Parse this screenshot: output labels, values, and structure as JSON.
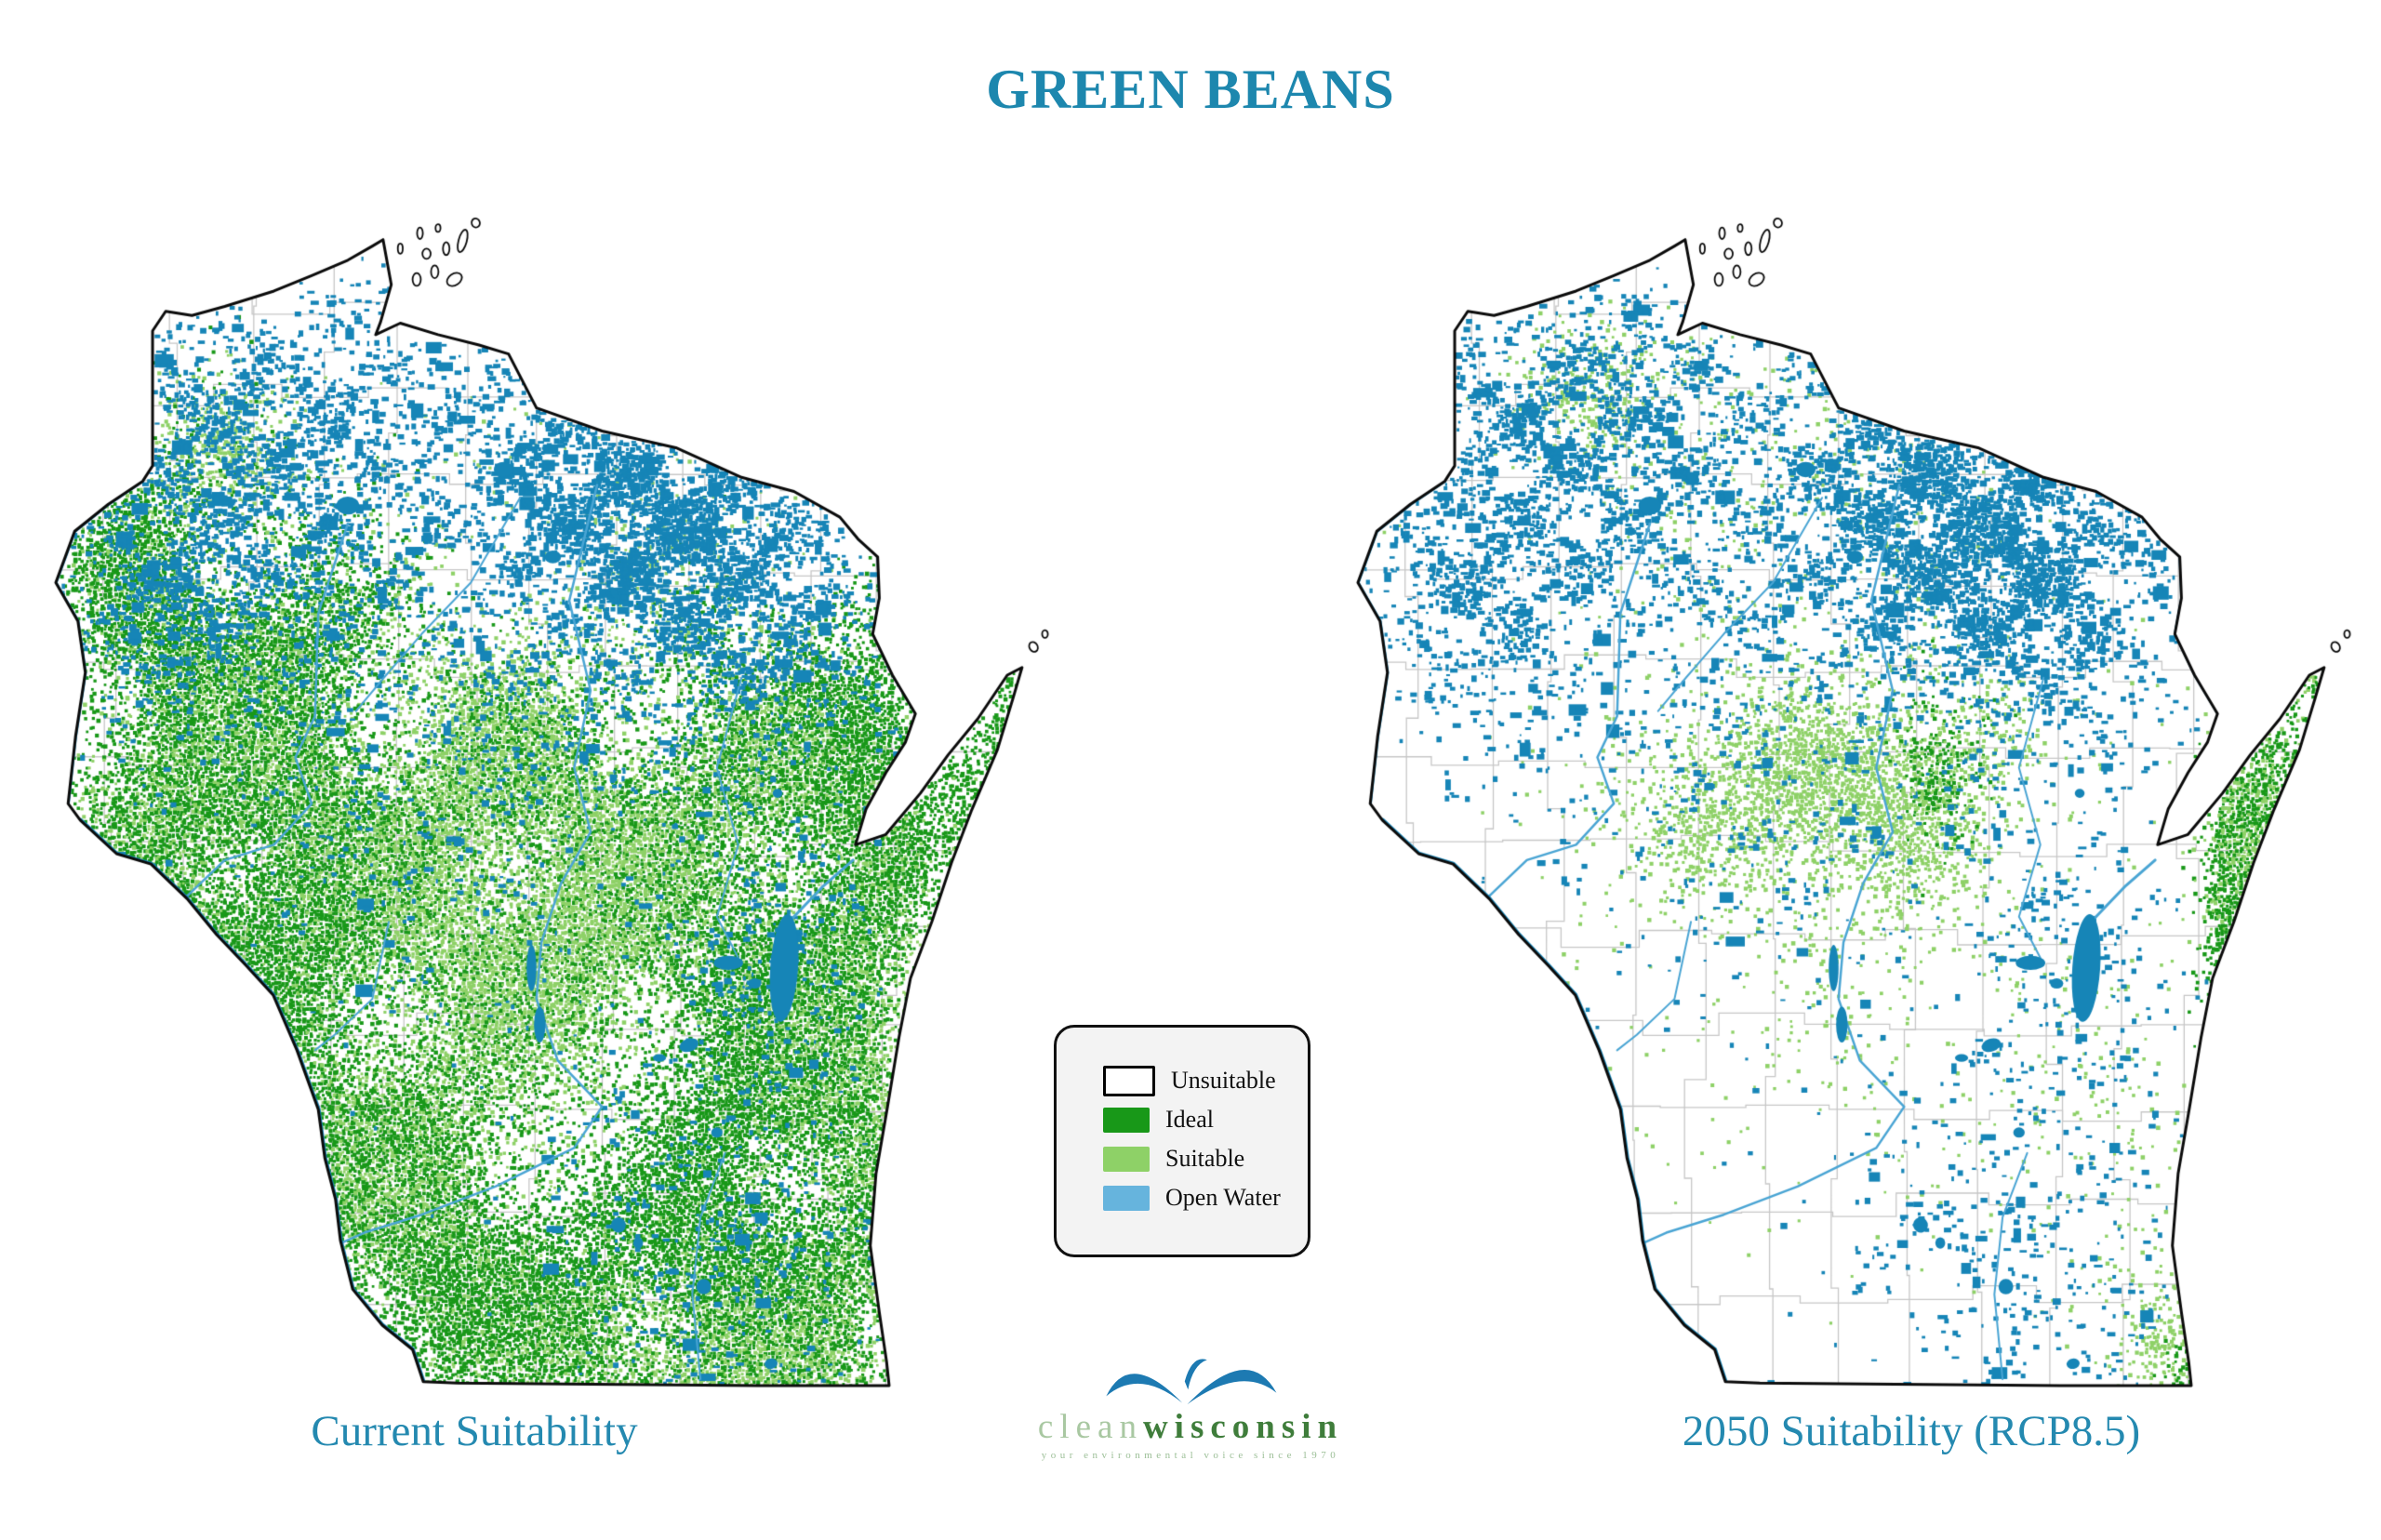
{
  "page": {
    "title": "GREEN BEANS"
  },
  "colors": {
    "title": "#1d87ae",
    "caption": "#2489b0",
    "ideal": "#189818",
    "suitable": "#8ed167",
    "water_fill": "#1685b7",
    "river": "#4aa5d4",
    "county_line": "#c7c7c7",
    "state_line": "#0b0b0b",
    "legend_bg": "#f3f3f3"
  },
  "legend": {
    "items": [
      {
        "label": "Unsuitable",
        "color": "#ffffff",
        "border": "#000000"
      },
      {
        "label": "Ideal",
        "color": "#189818",
        "border": ""
      },
      {
        "label": "Suitable",
        "color": "#8ed167",
        "border": ""
      },
      {
        "label": "Open Water",
        "color": "#66b4dd",
        "border": ""
      }
    ]
  },
  "logo": {
    "clean": "clean",
    "wisconsin": "wisconsin",
    "tagline": "your environmental voice since 1970",
    "bird_color": "#1d7ab2",
    "clean_color": "#a9c8a2",
    "wisconsin_color": "#3f7d3b",
    "tagline_color": "#9cbf97"
  },
  "maps": {
    "projection": {
      "lon_min": -93.05,
      "lon_max": -86.7,
      "lat_min": 42.35,
      "lat_max": 47.2
    },
    "outline": [
      [
        -92.21,
        46.676
      ],
      [
        -92.05,
        46.66
      ],
      [
        -91.85,
        46.695
      ],
      [
        -91.55,
        46.755
      ],
      [
        -91.32,
        46.815
      ],
      [
        -91.1,
        46.875
      ],
      [
        -90.95,
        46.93
      ],
      [
        -90.885,
        46.955
      ],
      [
        -90.835,
        46.78
      ],
      [
        -90.9,
        46.635
      ],
      [
        -90.93,
        46.585
      ],
      [
        -90.78,
        46.63
      ],
      [
        -90.55,
        46.585
      ],
      [
        -90.3,
        46.545
      ],
      [
        -90.12,
        46.51
      ],
      [
        -89.95,
        46.3
      ],
      [
        -89.55,
        46.21
      ],
      [
        -89.1,
        46.145
      ],
      [
        -88.7,
        46.03
      ],
      [
        -88.38,
        45.975
      ],
      [
        -88.1,
        45.875
      ],
      [
        -87.99,
        45.79
      ],
      [
        -87.87,
        45.72
      ],
      [
        -87.86,
        45.56
      ],
      [
        -87.9,
        45.42
      ],
      [
        -87.78,
        45.26
      ],
      [
        -87.64,
        45.11
      ],
      [
        -87.7,
        45.0
      ],
      [
        -87.82,
        44.88
      ],
      [
        -87.94,
        44.74
      ],
      [
        -88.005,
        44.6
      ],
      [
        -87.82,
        44.64
      ],
      [
        -87.61,
        44.8
      ],
      [
        -87.44,
        44.95
      ],
      [
        -87.26,
        45.09
      ],
      [
        -87.08,
        45.26
      ],
      [
        -86.99,
        45.29
      ],
      [
        -87.045,
        45.17
      ],
      [
        -87.14,
        44.97
      ],
      [
        -87.3,
        44.73
      ],
      [
        -87.42,
        44.53
      ],
      [
        -87.54,
        44.3
      ],
      [
        -87.67,
        44.08
      ],
      [
        -87.74,
        43.85
      ],
      [
        -87.81,
        43.58
      ],
      [
        -87.88,
        43.32
      ],
      [
        -87.915,
        43.04
      ],
      [
        -87.86,
        42.78
      ],
      [
        -87.815,
        42.585
      ],
      [
        -87.8,
        42.495
      ],
      [
        -88.6,
        42.495
      ],
      [
        -89.6,
        42.5
      ],
      [
        -90.43,
        42.505
      ],
      [
        -90.64,
        42.51
      ],
      [
        -90.705,
        42.635
      ],
      [
        -90.89,
        42.73
      ],
      [
        -91.07,
        42.87
      ],
      [
        -91.145,
        43.06
      ],
      [
        -91.175,
        43.22
      ],
      [
        -91.24,
        43.38
      ],
      [
        -91.28,
        43.57
      ],
      [
        -91.41,
        43.8
      ],
      [
        -91.555,
        44.015
      ],
      [
        -91.72,
        44.13
      ],
      [
        -91.9,
        44.25
      ],
      [
        -92.08,
        44.39
      ],
      [
        -92.3,
        44.525
      ],
      [
        -92.51,
        44.565
      ],
      [
        -92.73,
        44.695
      ],
      [
        -92.805,
        44.76
      ],
      [
        -92.76,
        45.02
      ],
      [
        -92.7,
        45.27
      ],
      [
        -92.745,
        45.47
      ],
      [
        -92.88,
        45.62
      ],
      [
        -92.765,
        45.82
      ],
      [
        -92.56,
        45.925
      ],
      [
        -92.35,
        46.015
      ],
      [
        -92.29,
        46.075
      ],
      [
        -92.29,
        46.6
      ]
    ],
    "islands": [
      [
        -90.68,
        46.8,
        0.05,
        0.05,
        0
      ],
      [
        -90.57,
        46.83,
        0.045,
        0.05,
        0
      ],
      [
        -90.45,
        46.8,
        0.1,
        0.045,
        -35
      ],
      [
        -90.62,
        46.9,
        0.05,
        0.04,
        0
      ],
      [
        -90.5,
        46.92,
        0.04,
        0.05,
        0
      ],
      [
        -90.4,
        46.95,
        0.05,
        0.09,
        15
      ],
      [
        -90.66,
        46.98,
        0.035,
        0.045,
        0
      ],
      [
        -90.55,
        47.0,
        0.03,
        0.03,
        0
      ],
      [
        -90.78,
        46.92,
        0.03,
        0.04,
        0
      ],
      [
        -90.32,
        47.02,
        0.05,
        0.035,
        -20
      ],
      [
        -86.92,
        45.37,
        0.05,
        0.04,
        -30
      ],
      [
        -86.85,
        45.42,
        0.035,
        0.03,
        0
      ]
    ],
    "lakes": [
      [
        -88.44,
        44.12,
        0.17,
        0.42,
        4
      ],
      [
        -88.78,
        44.14,
        0.18,
        0.055,
        0
      ],
      [
        -88.62,
        44.06,
        0.08,
        0.04,
        0
      ],
      [
        -89.98,
        44.12,
        0.06,
        0.18,
        0
      ],
      [
        -89.93,
        43.9,
        0.07,
        0.14,
        0
      ],
      [
        -89.02,
        43.82,
        0.12,
        0.05,
        -20
      ],
      [
        -89.45,
        43.12,
        0.09,
        0.06,
        -15
      ],
      [
        -89.33,
        43.05,
        0.06,
        0.045,
        0
      ],
      [
        -88.93,
        42.88,
        0.09,
        0.06,
        0
      ],
      [
        -88.52,
        42.58,
        0.08,
        0.04,
        -10
      ],
      [
        -88.48,
        44.8,
        0.06,
        0.035,
        0
      ],
      [
        -91.1,
        45.92,
        0.14,
        0.07,
        0
      ],
      [
        -90.15,
        46.06,
        0.12,
        0.06,
        0
      ],
      [
        -89.85,
        45.72,
        0.1,
        0.05,
        0
      ],
      [
        -89.2,
        43.77,
        0.08,
        0.03,
        0
      ],
      [
        -88.85,
        43.48,
        0.07,
        0.04,
        0
      ]
    ],
    "rivers": [
      {
        "w": 2.5,
        "border": false,
        "pts": [
          [
            -89.58,
            46.0
          ],
          [
            -89.75,
            45.55
          ],
          [
            -89.62,
            45.2
          ],
          [
            -89.72,
            44.9
          ],
          [
            -89.62,
            44.65
          ],
          [
            -89.8,
            44.45
          ],
          [
            -89.92,
            44.22
          ],
          [
            -89.95,
            44.0
          ],
          [
            -89.82,
            43.76
          ],
          [
            -89.55,
            43.58
          ],
          [
            -89.72,
            43.42
          ],
          [
            -90.2,
            43.27
          ],
          [
            -90.65,
            43.16
          ],
          [
            -91.0,
            43.09
          ],
          [
            -91.14,
            43.05
          ]
        ]
      },
      {
        "w": 2.5,
        "border": false,
        "pts": [
          [
            -91.1,
            45.85
          ],
          [
            -91.28,
            45.5
          ],
          [
            -91.3,
            45.1
          ],
          [
            -91.42,
            44.94
          ],
          [
            -91.32,
            44.76
          ],
          [
            -91.55,
            44.6
          ],
          [
            -91.85,
            44.54
          ],
          [
            -92.08,
            44.4
          ]
        ]
      },
      {
        "w": 2,
        "border": false,
        "pts": [
          [
            -90.05,
            45.95
          ],
          [
            -90.35,
            45.62
          ],
          [
            -90.65,
            45.42
          ],
          [
            -90.88,
            45.25
          ],
          [
            -91.05,
            45.12
          ]
        ]
      },
      {
        "w": 2,
        "border": false,
        "pts": [
          [
            -90.85,
            44.3
          ],
          [
            -90.95,
            44.0
          ],
          [
            -91.18,
            43.86
          ],
          [
            -91.3,
            43.8
          ]
        ]
      },
      {
        "w": 2,
        "border": false,
        "pts": [
          [
            -88.7,
            45.25
          ],
          [
            -88.85,
            44.9
          ],
          [
            -88.72,
            44.6
          ],
          [
            -88.85,
            44.32
          ],
          [
            -88.72,
            44.16
          ]
        ]
      },
      {
        "w": 3,
        "border": false,
        "pts": [
          [
            -88.41,
            44.3
          ],
          [
            -88.2,
            44.44
          ],
          [
            -88.02,
            44.54
          ]
        ]
      },
      {
        "w": 2,
        "border": false,
        "pts": [
          [
            -88.8,
            43.4
          ],
          [
            -88.95,
            43.15
          ],
          [
            -89.0,
            42.85
          ],
          [
            -88.95,
            42.52
          ]
        ]
      },
      {
        "w": 3.5,
        "border": true,
        "pts": [
          [
            -92.805,
            44.76
          ],
          [
            -92.76,
            45.02
          ],
          [
            -92.7,
            45.27
          ],
          [
            -92.745,
            45.47
          ],
          [
            -92.88,
            45.62
          ],
          [
            -92.765,
            45.82
          ],
          [
            -92.56,
            45.925
          ],
          [
            -92.35,
            46.015
          ]
        ]
      },
      {
        "w": 5,
        "border": true,
        "pts": [
          [
            -90.64,
            42.51
          ],
          [
            -90.705,
            42.635
          ],
          [
            -90.89,
            42.73
          ],
          [
            -91.07,
            42.87
          ],
          [
            -91.145,
            43.06
          ],
          [
            -91.175,
            43.22
          ],
          [
            -91.24,
            43.38
          ],
          [
            -91.28,
            43.57
          ],
          [
            -91.41,
            43.8
          ],
          [
            -91.555,
            44.015
          ],
          [
            -91.72,
            44.13
          ],
          [
            -91.9,
            44.25
          ],
          [
            -92.08,
            44.39
          ],
          [
            -92.3,
            44.525
          ],
          [
            -92.51,
            44.565
          ],
          [
            -92.73,
            44.695
          ]
        ]
      },
      {
        "w": 2.5,
        "border": true,
        "pts": [
          [
            -88.1,
            45.875
          ],
          [
            -87.99,
            45.79
          ],
          [
            -87.87,
            45.72
          ],
          [
            -87.86,
            45.56
          ],
          [
            -87.9,
            45.42
          ],
          [
            -87.78,
            45.26
          ],
          [
            -87.64,
            45.11
          ]
        ]
      }
    ],
    "county_lons": [
      -92.55,
      -92.12,
      -91.68,
      -91.25,
      -90.82,
      -90.38,
      -89.95,
      -89.52,
      -89.08,
      -88.65,
      -88.22,
      -87.82
    ],
    "county_lats": [
      42.85,
      43.2,
      43.55,
      43.9,
      44.25,
      44.6,
      44.95,
      45.3,
      45.65,
      46.0,
      46.35,
      46.7
    ],
    "water_blobs": [
      [
        -89.55,
        46.0,
        0.7,
        0.5,
        0.6
      ],
      [
        -89.0,
        45.8,
        0.55,
        0.45,
        0.45
      ],
      [
        -91.55,
        45.95,
        0.8,
        0.55,
        0.33
      ],
      [
        -92.25,
        45.6,
        0.45,
        0.4,
        0.28
      ],
      [
        -88.55,
        45.55,
        0.55,
        0.5,
        0.3
      ],
      [
        -90.4,
        45.1,
        1.3,
        0.9,
        0.07
      ],
      [
        -88.9,
        43.0,
        0.8,
        0.55,
        0.1
      ],
      [
        -88.55,
        44.15,
        0.45,
        0.45,
        0.13
      ],
      [
        -92.0,
        46.35,
        0.5,
        0.3,
        0.2
      ],
      [
        -91.0,
        46.4,
        0.6,
        0.3,
        0.15
      ]
    ],
    "left": {
      "caption": "Current Suitability",
      "seed": 101,
      "speckles": {
        "ideal": [
          [
            -92.05,
            45.1,
            0.75,
            0.65,
            0.7
          ],
          [
            -92.35,
            45.72,
            0.38,
            0.42,
            0.5
          ],
          [
            -91.55,
            44.55,
            0.75,
            0.6,
            0.6
          ],
          [
            -91.75,
            44.2,
            0.4,
            0.4,
            0.5
          ],
          [
            -91.05,
            43.75,
            0.7,
            0.55,
            0.55
          ],
          [
            -90.4,
            43.15,
            0.65,
            0.45,
            0.55
          ],
          [
            -90.75,
            42.75,
            0.45,
            0.3,
            0.6
          ],
          [
            -89.3,
            42.8,
            1.05,
            0.42,
            0.8
          ],
          [
            -88.35,
            43.3,
            0.75,
            0.6,
            0.75
          ],
          [
            -88.25,
            44.4,
            0.55,
            0.65,
            0.8
          ],
          [
            -87.8,
            44.95,
            0.3,
            0.45,
            0.7
          ],
          [
            -87.25,
            45.0,
            0.25,
            0.4,
            0.65
          ],
          [
            -88.05,
            45.05,
            0.45,
            0.35,
            0.5
          ],
          [
            -89.6,
            44.2,
            0.6,
            0.45,
            0.3
          ],
          [
            -90.1,
            44.8,
            0.55,
            0.4,
            0.45
          ],
          [
            -89.05,
            45.0,
            0.45,
            0.4,
            0.55
          ],
          [
            -91.3,
            45.35,
            0.5,
            0.4,
            0.45
          ],
          [
            -88.8,
            43.85,
            0.5,
            0.45,
            0.55
          ]
        ],
        "suitable": [
          [
            -89.75,
            44.35,
            0.65,
            0.48,
            0.85
          ],
          [
            -90.35,
            44.95,
            0.55,
            0.38,
            0.45
          ],
          [
            -89.0,
            42.62,
            0.9,
            0.3,
            0.55
          ],
          [
            -91.8,
            44.9,
            0.85,
            0.65,
            0.4
          ],
          [
            -90.8,
            43.35,
            0.75,
            0.5,
            0.4
          ],
          [
            -88.05,
            43.75,
            0.55,
            0.75,
            0.4
          ],
          [
            -91.95,
            46.1,
            0.45,
            0.3,
            0.28
          ],
          [
            -89.4,
            45.5,
            0.9,
            0.55,
            0.1
          ],
          [
            -90.6,
            44.3,
            0.7,
            0.5,
            0.35
          ],
          [
            -88.6,
            44.8,
            0.5,
            0.4,
            0.35
          ]
        ]
      }
    },
    "right": {
      "caption": "2050 Suitability (RCP8.5)",
      "seed": 202,
      "speckles": {
        "ideal": [
          [
            -87.52,
            44.42,
            0.16,
            0.5,
            0.85
          ],
          [
            -87.62,
            43.65,
            0.12,
            0.45,
            0.55
          ],
          [
            -87.3,
            44.97,
            0.18,
            0.33,
            0.8
          ],
          [
            -87.02,
            45.3,
            0.1,
            0.12,
            0.65
          ],
          [
            -89.35,
            44.93,
            0.2,
            0.2,
            0.7
          ],
          [
            -87.85,
            42.52,
            0.12,
            0.1,
            0.45
          ]
        ],
        "suitable": [
          [
            -90.35,
            44.8,
            0.7,
            0.33,
            0.6
          ],
          [
            -89.75,
            44.72,
            0.45,
            0.28,
            0.55
          ],
          [
            -89.15,
            45.03,
            0.3,
            0.22,
            0.5
          ],
          [
            -91.25,
            46.35,
            0.45,
            0.22,
            0.32
          ],
          [
            -90.2,
            45.9,
            1.0,
            0.55,
            0.07
          ],
          [
            -87.45,
            44.75,
            0.22,
            0.55,
            0.4
          ],
          [
            -87.95,
            42.68,
            0.22,
            0.18,
            0.45
          ],
          [
            -89.8,
            44.3,
            1.5,
            0.9,
            0.045
          ],
          [
            -88.35,
            43.4,
            0.35,
            0.45,
            0.08
          ],
          [
            -87.1,
            45.35,
            0.12,
            0.12,
            0.5
          ]
        ]
      }
    }
  }
}
